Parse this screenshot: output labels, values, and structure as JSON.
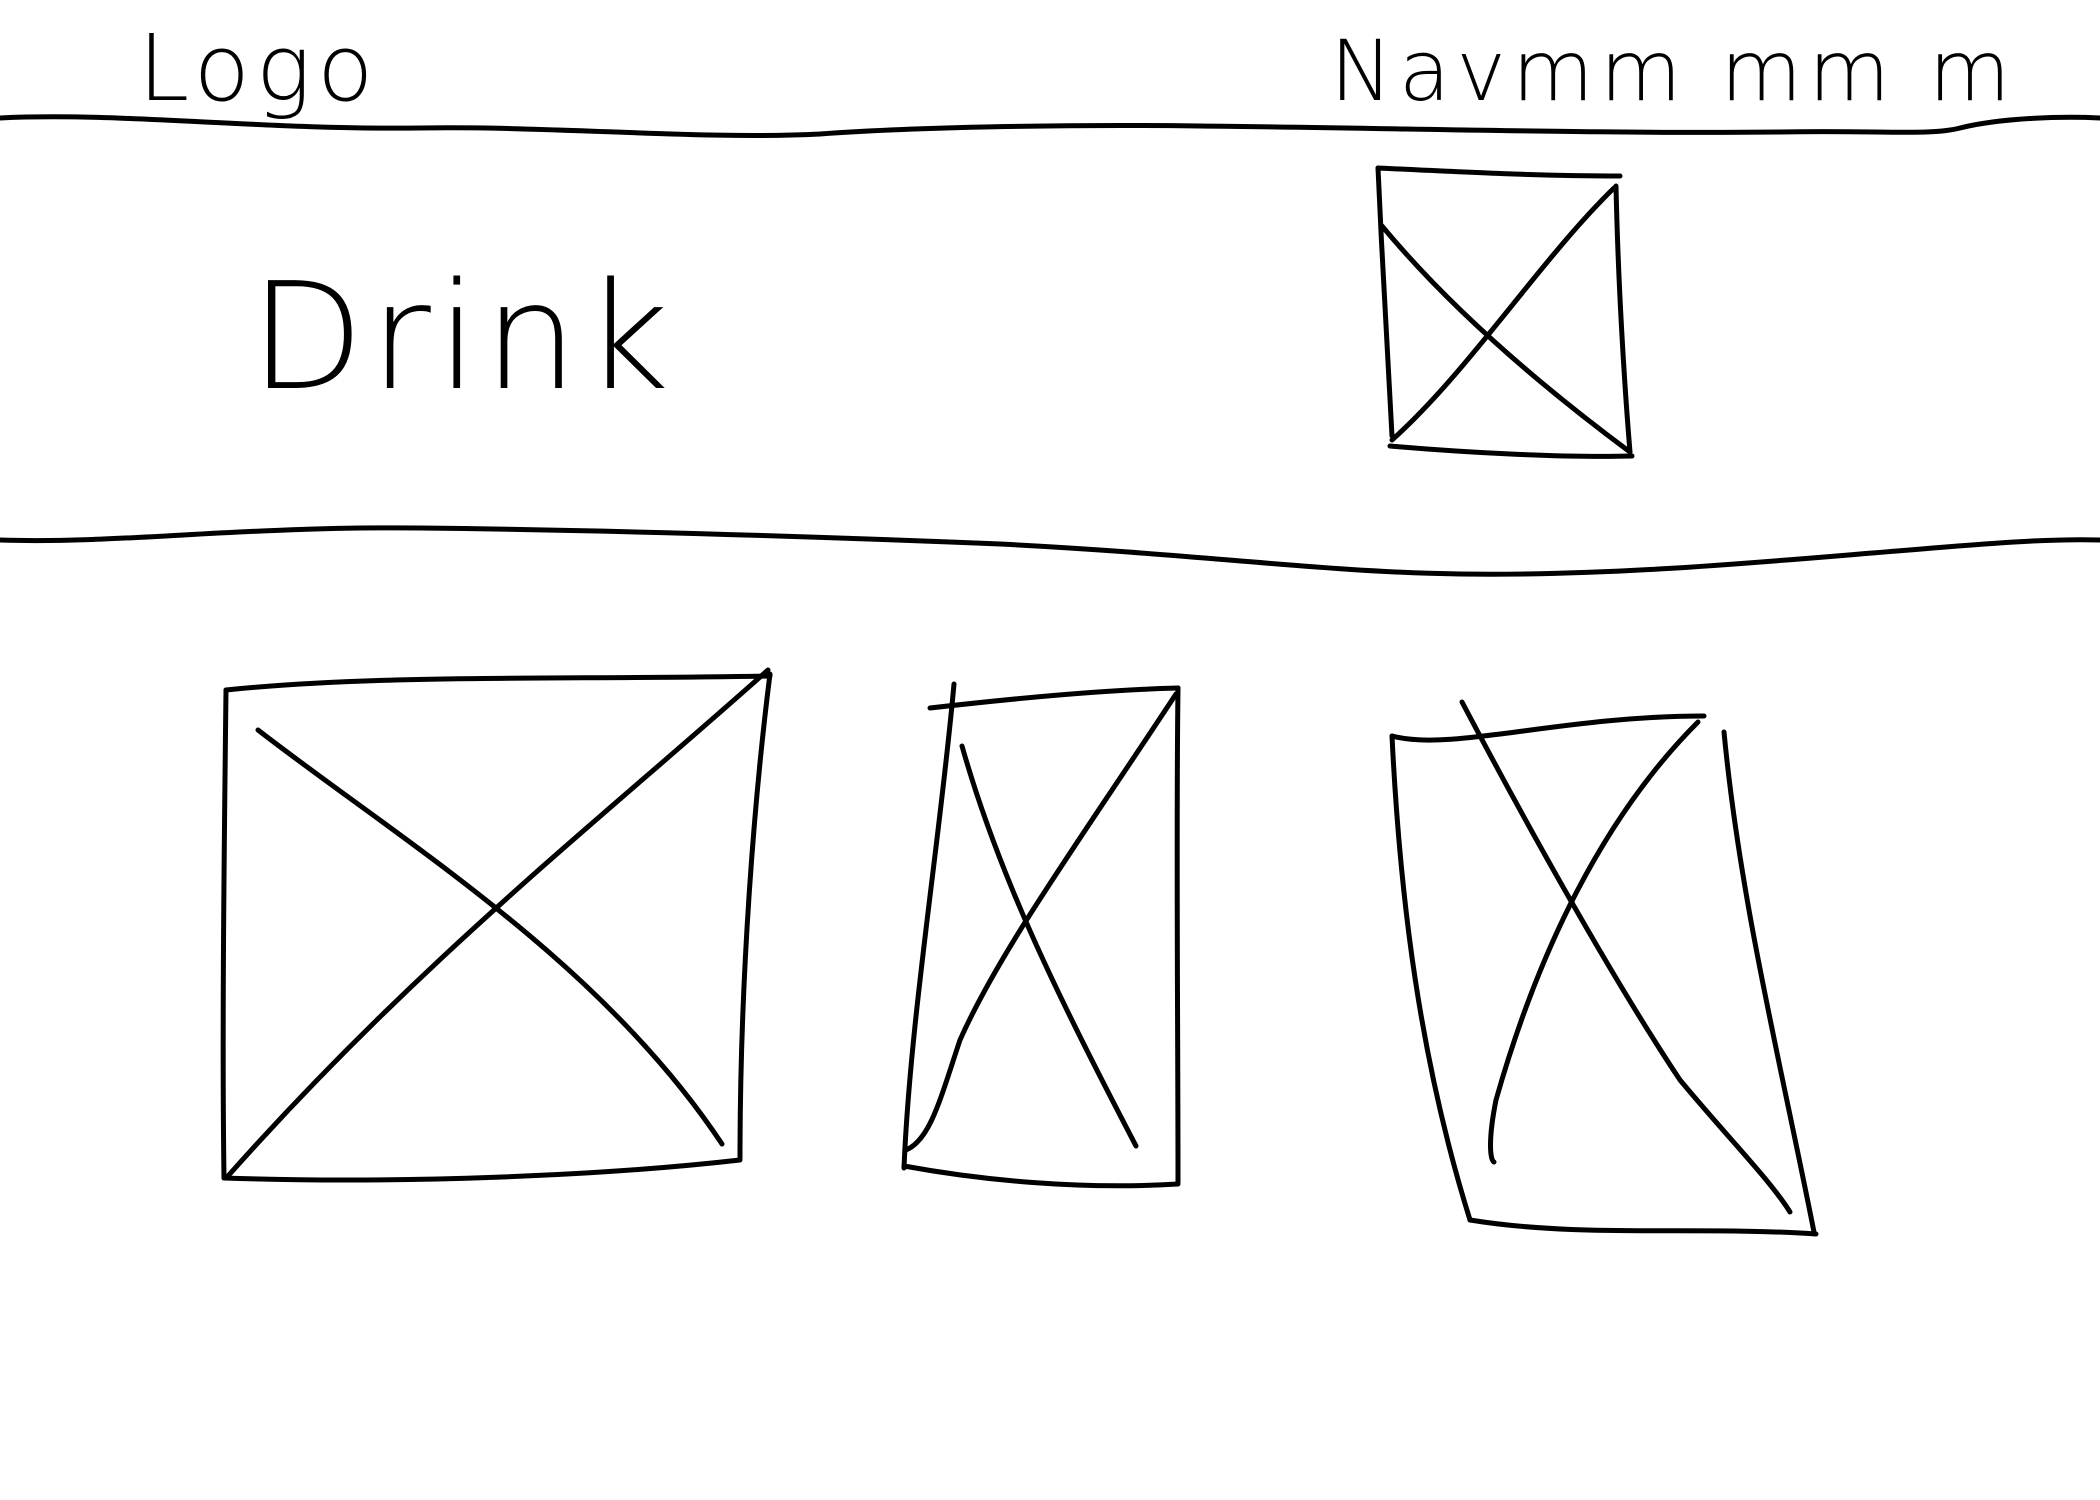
{
  "header": {
    "logo_text": "Logo",
    "nav_text": "Navmm mm m"
  },
  "hero": {
    "title": "Drink",
    "image_icon": "image-placeholder-icon"
  },
  "gallery": {
    "items": [
      {
        "icon": "image-placeholder-icon"
      },
      {
        "icon": "image-placeholder-icon"
      },
      {
        "icon": "image-placeholder-icon"
      }
    ]
  },
  "colors": {
    "ink": "#000000",
    "paper": "#ffffff"
  }
}
